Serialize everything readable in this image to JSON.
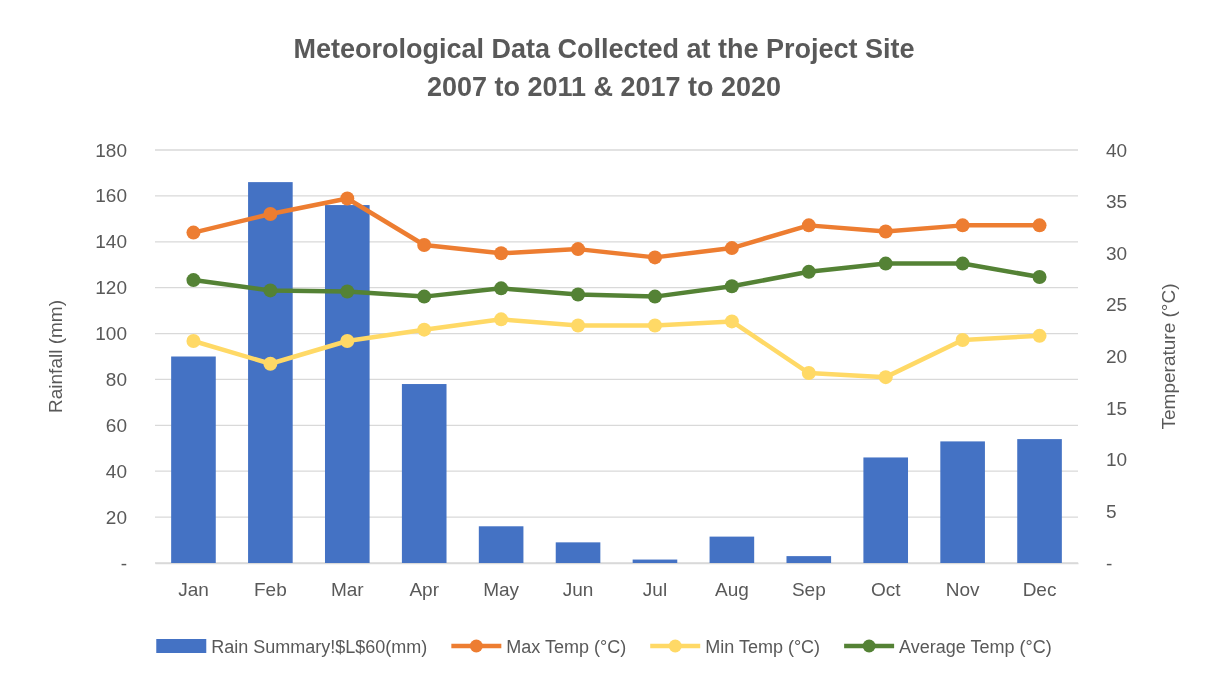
{
  "chart_data": {
    "type": "bar",
    "title": "Meteorological Data Collected at the Project Site\n2007 to 2011 & 2017 to 2020",
    "ylabel": "Rainfall (mm)",
    "y2label": "Temperature (°C)",
    "categories": [
      "Jan",
      "Feb",
      "Mar",
      "Apr",
      "May",
      "Jun",
      "Jul",
      "Aug",
      "Sep",
      "Oct",
      "Nov",
      "Dec"
    ],
    "series": [
      {
        "name": "Rain Summary!$L$60(mm)",
        "color": "#4472c4",
        "values": [
          90,
          166,
          156,
          78,
          16,
          9,
          1.5,
          11.5,
          3,
          46,
          53,
          54
        ]
      },
      {
        "name": "Max Temp (°C)",
        "type": "line",
        "axis": "y2",
        "color": "#ed7d31",
        "values": [
          32.0,
          33.8,
          35.3,
          30.8,
          30.0,
          30.4,
          29.6,
          30.5,
          32.7,
          32.1,
          32.7,
          32.7
        ]
      },
      {
        "name": "Min Temp (°C)",
        "type": "line",
        "axis": "y2",
        "color": "#ffd966",
        "values": [
          21.5,
          19.3,
          21.5,
          22.6,
          23.6,
          23.0,
          23.0,
          23.4,
          18.4,
          18.0,
          21.6,
          22.0
        ]
      },
      {
        "name": "Average Temp (°C)",
        "type": "line",
        "axis": "y2",
        "color": "#548235",
        "values": [
          27.4,
          26.4,
          26.3,
          25.8,
          26.6,
          26.0,
          25.8,
          26.8,
          28.2,
          29.0,
          29.0,
          27.7
        ]
      }
    ],
    "ylim": [
      0,
      180
    ],
    "yticks": [
      {
        "value": 0,
        "label": "-"
      },
      20,
      40,
      60,
      80,
      100,
      120,
      140,
      160,
      180
    ],
    "y2lim": [
      0,
      40
    ],
    "y2ticks": [
      {
        "value": 0,
        "label": "-"
      },
      5,
      10,
      15,
      20,
      25,
      30,
      35,
      40
    ],
    "grid": "y",
    "legend": "bottom",
    "marker": "circle",
    "line_style": "solid"
  }
}
